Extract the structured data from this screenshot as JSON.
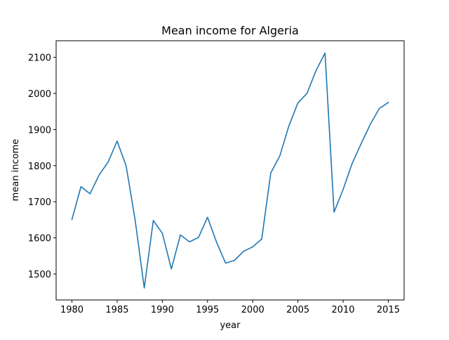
{
  "chart_data": {
    "type": "line",
    "title": "Mean income for Algeria",
    "xlabel": "year",
    "ylabel": "mean income",
    "xlim": [
      1978.25,
      2016.75
    ],
    "ylim": [
      1428,
      2146
    ],
    "x_ticks": [
      1980,
      1985,
      1990,
      1995,
      2000,
      2005,
      2010,
      2015
    ],
    "y_ticks": [
      1500,
      1600,
      1700,
      1800,
      1900,
      2000,
      2100
    ],
    "grid": false,
    "series": [
      {
        "color": "#1f77b4",
        "x": [
          1980,
          1981,
          1982,
          1983,
          1984,
          1985,
          1986,
          1987,
          1988,
          1989,
          1990,
          1991,
          1992,
          1993,
          1994,
          1995,
          1996,
          1997,
          1998,
          1999,
          2000,
          2001,
          2002,
          2003,
          2004,
          2005,
          2006,
          2007,
          2008,
          2009,
          2010,
          2011,
          2012,
          2013,
          2014,
          2015
        ],
        "y": [
          1651,
          1742,
          1722,
          1774,
          1810,
          1868,
          1799,
          1648,
          1461,
          1648,
          1613,
          1514,
          1608,
          1589,
          1601,
          1657,
          1588,
          1530,
          1538,
          1563,
          1575,
          1597,
          1780,
          1827,
          1910,
          1974,
          2000,
          2063,
          2112,
          1671,
          1734,
          1806,
          1861,
          1914,
          1958,
          1975
        ]
      }
    ]
  }
}
